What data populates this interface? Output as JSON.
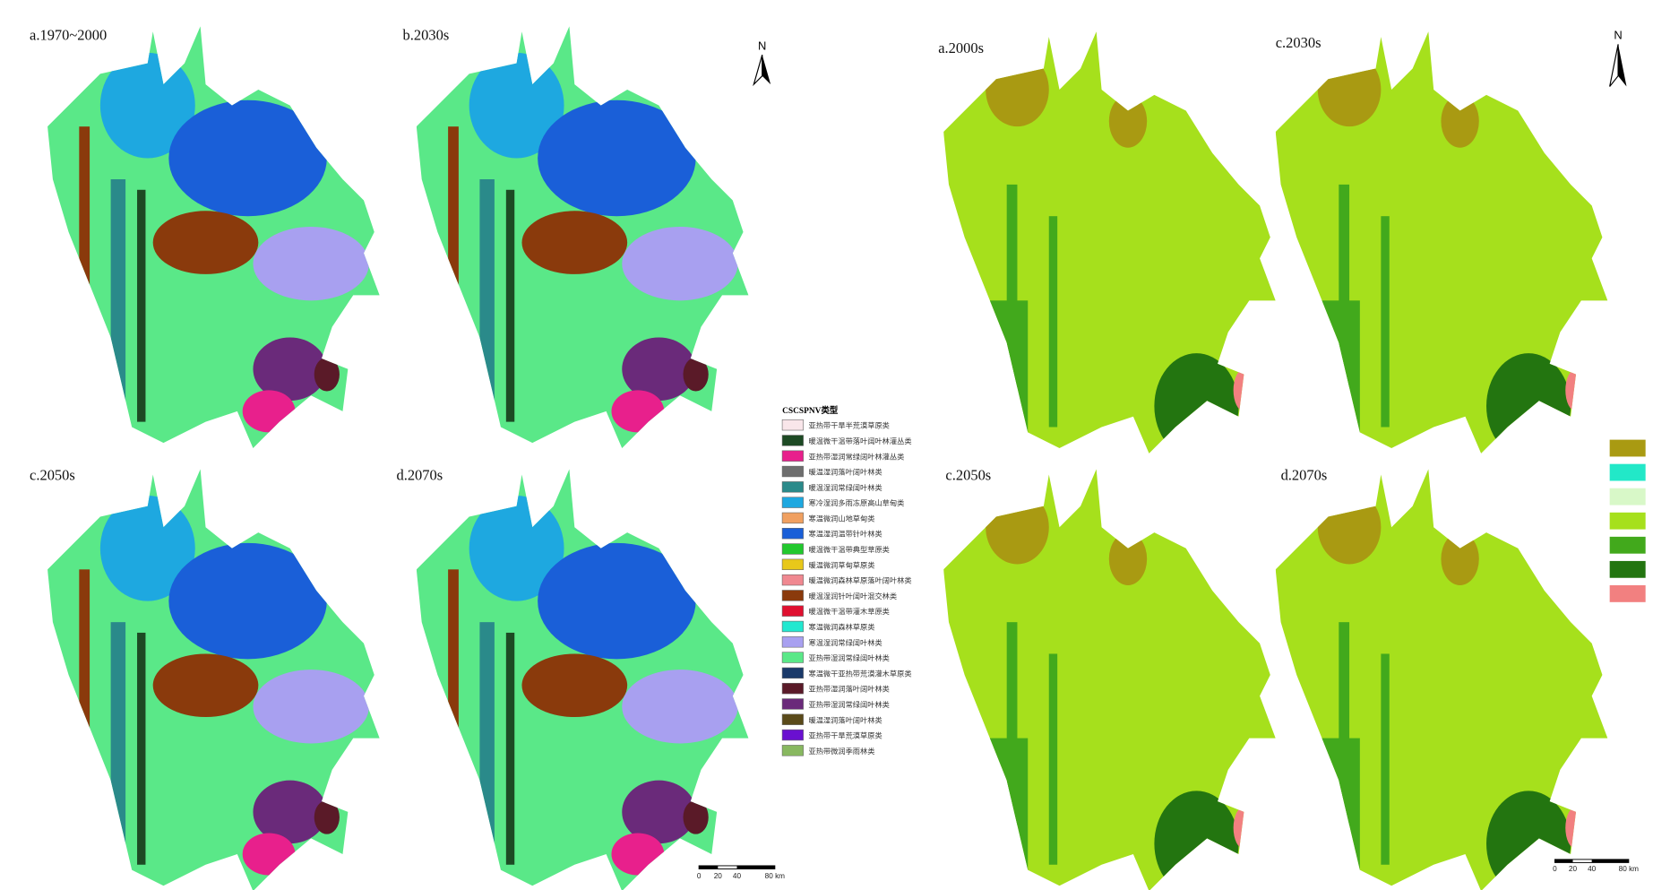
{
  "left_panels": [
    "a.1970~2000",
    "b.2030s",
    "c.2050s",
    "d.2070s"
  ],
  "right_panels": [
    "a.2000s",
    "c.2030s",
    "c.2050s",
    "d.2070s"
  ],
  "north": "N",
  "legend": {
    "title": "CSCSPNV类型",
    "items": [
      {
        "label": "亚热带干旱半荒漠草原类",
        "color": "#f9e6ea"
      },
      {
        "label": "暖温微干温带落叶阔叶林灌丛类",
        "color": "#1d4a24"
      },
      {
        "label": "亚热带湿润常绿阔叶林灌丛类",
        "color": "#e8208c"
      },
      {
        "label": "暖温湿润落叶阔叶林类",
        "color": "#6e6e6e"
      },
      {
        "label": "暖温湿润常绿阔叶林类",
        "color": "#2a8a8a"
      },
      {
        "label": "寒冷湿润多雨冻原高山草甸类",
        "color": "#1ea8e0"
      },
      {
        "label": "寒温微润山地草甸类",
        "color": "#f0a060"
      },
      {
        "label": "寒温湿润温带针叶林类",
        "color": "#1a5fd8"
      },
      {
        "label": "暖温微干温带典型草原类",
        "color": "#22c82e"
      },
      {
        "label": "暖温微润草甸草原类",
        "color": "#e8c81a"
      },
      {
        "label": "暖温微润森林草原落叶阔叶林类",
        "color": "#f08890"
      },
      {
        "label": "暖温湿润针叶阔叶混交林类",
        "color": "#8a3a0c"
      },
      {
        "label": "暖温微干温带灌木草原类",
        "color": "#e01030"
      },
      {
        "label": "寒温微润森林草原类",
        "color": "#22e8d0"
      },
      {
        "label": "寒温湿润常绿阔叶林类",
        "color": "#a8a0f0"
      },
      {
        "label": "亚热带湿润常绿阔叶林类",
        "color": "#5ae888"
      },
      {
        "label": "寒温微干亚热带荒漠灌木草原类",
        "color": "#1a3a6a"
      },
      {
        "label": "亚热带湿润落叶阔叶林类",
        "color": "#5a1a28"
      },
      {
        "label": "亚热带湿润常绿阔叶林类",
        "color": "#6a2a7a"
      },
      {
        "label": "暖温湿润落叶阔叶林类",
        "color": "#5a4a1a"
      },
      {
        "label": "亚热带干旱荒漠草原类",
        "color": "#6a10d0"
      },
      {
        "label": "亚热带微润季雨林类",
        "color": "#88b860"
      }
    ]
  },
  "right_legend_colors": [
    "#a99a12",
    "#22e8c8",
    "#d8f8c8",
    "#a6e01c",
    "#42a91c",
    "#237510",
    "#f28080"
  ],
  "scale_labels": [
    "0",
    "20",
    "40",
    "80 km"
  ]
}
